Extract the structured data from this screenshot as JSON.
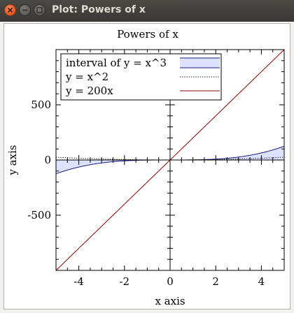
{
  "window": {
    "title": "Plot: Powers of x"
  },
  "chart_data": {
    "type": "line",
    "title": "Powers of x",
    "xlabel": "x axis",
    "ylabel": "y axis",
    "xlim": [
      -5,
      5
    ],
    "ylim": [
      -1000,
      1000
    ],
    "x_ticks": [
      -4,
      -2,
      0,
      2,
      4
    ],
    "x_tick_labels": [
      "-4",
      "-2",
      "0",
      "2",
      "4"
    ],
    "y_ticks": [
      -500,
      0,
      500
    ],
    "y_tick_labels": [
      "-500",
      "0",
      "500"
    ],
    "grid": false,
    "zero_axes": true,
    "legend_position": "top-left",
    "series": [
      {
        "name": "interval of y = x^3",
        "kind": "interval",
        "function": "x^3",
        "lower_bound": 0,
        "color": "#1a1a80",
        "fill": "#dde3ff"
      },
      {
        "name": "y = x^2",
        "kind": "line",
        "function": "x^2",
        "style": "dotted",
        "color": "#000000"
      },
      {
        "name": "y = 200x",
        "kind": "line",
        "function": "200*x",
        "style": "solid",
        "color": "#8b0000"
      }
    ]
  }
}
